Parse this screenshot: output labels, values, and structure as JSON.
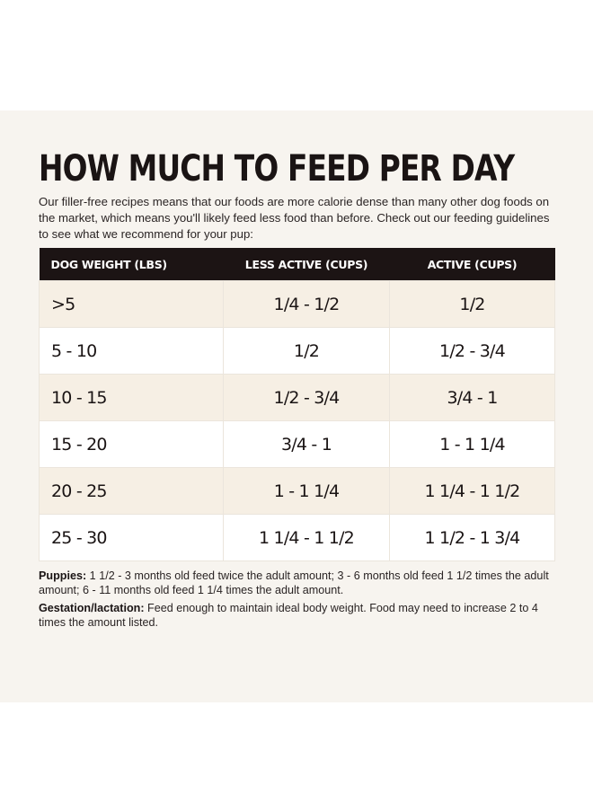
{
  "title": "HOW MUCH TO FEED PER DAY",
  "intro": "Our filler-free recipes means that our foods are more calorie dense than many other dog foods on the market, which means you'll likely feed less food than before. Check out our feeding guidelines to see what we recommend for your pup:",
  "table": {
    "headers": [
      "DOG WEIGHT (LBS)",
      "LESS ACTIVE (CUPS)",
      "ACTIVE (CUPS)"
    ],
    "rows": [
      [
        ">5",
        "1/4 - 1/2",
        "1/2"
      ],
      [
        "5 - 10",
        "1/2",
        "1/2 - 3/4"
      ],
      [
        "10 - 15",
        "1/2 - 3/4",
        "3/4 - 1"
      ],
      [
        "15 - 20",
        "3/4 - 1",
        "1 - 1 1/4"
      ],
      [
        "20 - 25",
        "1 - 1 1/4",
        "1 1/4 - 1 1/2"
      ],
      [
        "25 - 30",
        "1 1/4 - 1 1/2",
        "1 1/2 - 1 3/4"
      ]
    ]
  },
  "notes": {
    "puppies_label": "Puppies:",
    "puppies_text": " 1 1/2 - 3 months old feed twice the adult amount; 3 - 6 months old feed 1 1/2 times the adult amount; 6 - 11 months old feed 1 1/4 times the adult amount.",
    "gestation_label": "Gestation/lactation:",
    "gestation_text": " Feed enough to maintain ideal body weight. Food may need to increase 2 to 4 times the amount listed."
  },
  "colors": {
    "panel_background": "#f7f4ef",
    "header_background": "#1c1414",
    "shaded_row": "#f6efe4",
    "plain_row": "#ffffff"
  }
}
